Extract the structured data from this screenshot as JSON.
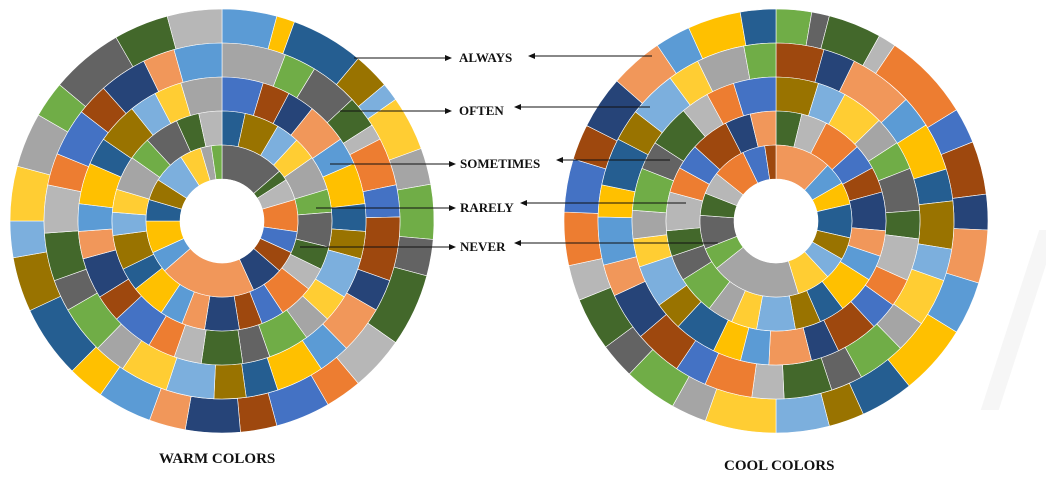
{
  "chart_data": {
    "type": "multi-level-donut",
    "legend": [
      "ALWAYS",
      "OFTEN",
      "SOMETIMES",
      "RARELY",
      "NEVER"
    ],
    "palette": [
      "#5b9bd5",
      "#ed7d31",
      "#a5a5a5",
      "#ffc000",
      "#4472c4",
      "#70ad47",
      "#255e91",
      "#9e480e",
      "#636363",
      "#997300",
      "#264478",
      "#43682b",
      "#7cafdd",
      "#f1975a",
      "#b7b7b7",
      "#ffcd33"
    ],
    "charts": [
      {
        "title": "WARM COLORS",
        "rings": [
          {
            "name": "ALWAYS",
            "values": [
              3,
              1,
              4,
              2,
              1,
              3,
              2,
              3,
              2,
              4,
              3,
              2,
              3,
              2,
              3,
              2,
              3,
              2,
              4,
              3,
              2,
              3,
              3,
              2,
              4,
              3,
              3
            ]
          },
          {
            "name": "OFTEN",
            "values": [
              4,
              2,
              3,
              2,
              1,
              3,
              2,
              4,
              2,
              3,
              2,
              3,
              2,
              2,
              3,
              3,
              2,
              3,
              2,
              3,
              3,
              2,
              3,
              2,
              3,
              2,
              3
            ]
          },
          {
            "name": "SOMETIMES",
            "values": [
              3,
              2,
              2,
              3,
              2,
              3,
              2,
              2,
              3,
              2,
              2,
              3,
              2,
              3,
              2,
              2,
              3,
              2,
              3,
              2,
              2,
              3,
              2,
              3,
              2,
              2,
              3
            ]
          },
          {
            "name": "RARELY",
            "values": [
              2,
              3,
              2,
              2,
              3,
              2,
              3,
              2,
              2,
              3,
              2,
              2,
              3,
              2,
              2,
              3,
              2,
              3,
              2,
              2,
              3,
              2,
              3,
              2,
              2
            ]
          },
          {
            "name": "NEVER",
            "values": [
              6,
              1,
              2,
              3,
              2,
              2,
              3,
              9,
              2,
              3,
              2,
              2,
              3,
              2,
              1,
              1
            ]
          }
        ]
      },
      {
        "title": "COOL COLORS",
        "rings": [
          {
            "name": "ALWAYS",
            "values": [
              2,
              1,
              3,
              1,
              5,
              2,
              3,
              2,
              3,
              3,
              4,
              3,
              2,
              3,
              4,
              2,
              3,
              2,
              3,
              2,
              3,
              3,
              2,
              3,
              3,
              2,
              3,
              2
            ]
          },
          {
            "name": "OFTEN",
            "values": [
              3,
              2,
              4,
              2,
              3,
              2,
              3,
              2,
              3,
              2,
              3,
              2,
              3,
              2,
              3,
              2,
              3,
              3,
              2,
              3,
              2,
              3,
              2,
              3,
              2,
              3,
              2
            ]
          },
          {
            "name": "SOMETIMES",
            "values": [
              3,
              2,
              3,
              2,
              2,
              3,
              2,
              3,
              2,
              2,
              3,
              2,
              3,
              2,
              2,
              3,
              2,
              3,
              2,
              2,
              3,
              2,
              3,
              2,
              2,
              3
            ]
          },
          {
            "name": "RARELY",
            "values": [
              2,
              2,
              3,
              2,
              2,
              3,
              2,
              2,
              3,
              2,
              2,
              3,
              2,
              2,
              3,
              2,
              2,
              3,
              2,
              2,
              3,
              2,
              2
            ]
          },
          {
            "name": "NEVER",
            "values": [
              5,
              2,
              2,
              3,
              2,
              2,
              3,
              8,
              2,
              3,
              2,
              2,
              3,
              2,
              1
            ]
          }
        ]
      }
    ]
  }
}
